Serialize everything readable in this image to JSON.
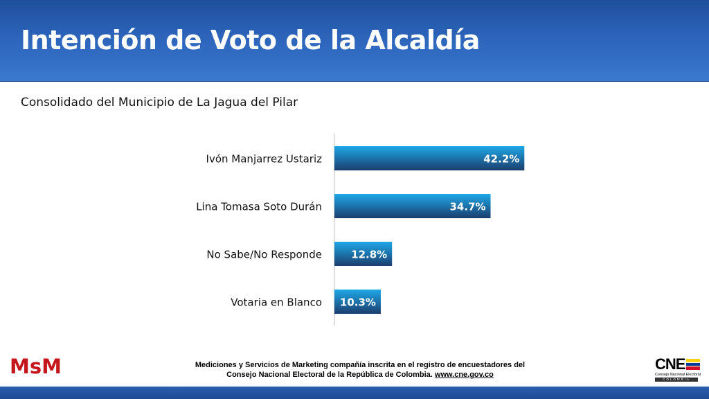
{
  "header": {
    "title": "Intención de Voto de la Alcaldía"
  },
  "subtitle": "Consolidado del Municipio de La Jagua del Pilar",
  "chart_data": {
    "type": "bar",
    "orientation": "horizontal",
    "categories": [
      "Ivón Manjarrez Ustariz",
      "Lina Tomasa Soto Durán",
      "No Sabe/No Responde",
      "Votaria en Blanco"
    ],
    "values": [
      42.2,
      34.7,
      12.8,
      10.3
    ],
    "labels": [
      "42.2%",
      "34.7%",
      "12.8%",
      "10.3%"
    ],
    "unit": "%",
    "xlim": [
      0,
      100
    ],
    "grid": false,
    "legend": "none",
    "colors": {
      "bar_top": "#1ea8e6",
      "bar_bottom": "#1b3d6e",
      "label_text": "#ffffff"
    }
  },
  "footer": {
    "logo": "MsM",
    "line1": "Mediciones y Servicios de Marketing compañía inscrita en el registro de encuestadores del",
    "line2": "Consejo Nacional Electoral de la República de Colombia.",
    "link": "www.cne.gov.co",
    "cne_letters": "CNE",
    "cne_name": "Consejo Nacional Electoral",
    "cne_country": "COLOMBIA"
  }
}
